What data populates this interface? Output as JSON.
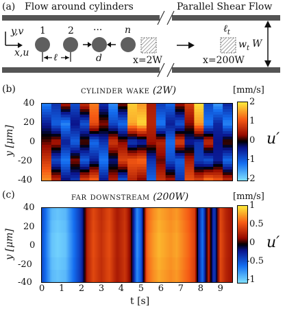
{
  "panel_a": {
    "label": "(a)",
    "left_title": "Flow around cylinders",
    "right_title": "Parallel Shear Flow",
    "axis_y": "y,v",
    "axis_x": "x,u",
    "cyl_labels": [
      "1",
      "2",
      "···",
      "n"
    ],
    "ell": "ℓ",
    "d": "d",
    "ell_t": "ℓ",
    "ell_t_sub": "t",
    "w_t": "w",
    "w_t_sub": "t",
    "W": "W",
    "x1": "x=2W",
    "x2": "x=200W"
  },
  "panel_b": {
    "label": "(b)",
    "title_sc": "cylinder wake",
    "title_math": "(2W)",
    "unit": "[mm/s]",
    "ylabel": "y [μm]",
    "yticks": [
      "40",
      "20",
      "0",
      "-20",
      "-40"
    ],
    "cbar_ticks": [
      "2",
      "1",
      "0",
      "-1",
      "-2"
    ],
    "cbar_symbol": "u′"
  },
  "panel_c": {
    "label": "(c)",
    "title_sc": "far downstream",
    "title_math": "(200W)",
    "unit": "[mm/s]",
    "ylabel": "y [μm]",
    "yticks": [
      "40",
      "20",
      "0",
      "-20",
      "-40"
    ],
    "cbar_ticks": [
      "1",
      "0.5",
      "0",
      "-0.5",
      "-1"
    ],
    "cbar_symbol": "u′",
    "xticks": [
      "0",
      "1",
      "2",
      "3",
      "4",
      "5",
      "6",
      "7",
      "8",
      "9"
    ],
    "xlabel": "t [s]"
  },
  "chart_data": [
    {
      "type": "heatmap",
      "title": "cylinder wake (2W)",
      "xlabel": "t [s]",
      "ylabel": "y [μm]",
      "xlim": [
        0,
        9.6
      ],
      "ylim": [
        -40,
        40
      ],
      "colorbar": {
        "label": "u′",
        "unit": "[mm/s]",
        "range": [
          -2,
          2
        ],
        "ticks": [
          2,
          1,
          0,
          -1,
          -2
        ]
      },
      "columns": [
        [
          -1.2,
          -0.4,
          0.2,
          0.8,
          1.4
        ],
        [
          -0.6,
          -1.0,
          0.5,
          -0.8,
          0.6
        ],
        [
          0.4,
          -1.3,
          -0.4,
          -1.2,
          -0.3
        ],
        [
          -0.8,
          -0.3,
          -1.0,
          0.3,
          -0.6
        ],
        [
          0.6,
          -0.9,
          0.2,
          -1.0,
          0.8
        ],
        [
          1.3,
          1.0,
          -1.1,
          -0.4,
          1.1
        ],
        [
          -0.5,
          0.3,
          -0.6,
          -1.2,
          -0.4
        ],
        [
          -1.3,
          -0.8,
          0.8,
          -0.3,
          0.5
        ],
        [
          0.2,
          -1.1,
          0.3,
          0.9,
          -0.8
        ],
        [
          1.8,
          1.6,
          -0.7,
          1.1,
          0.6
        ],
        [
          1.5,
          1.9,
          -0.5,
          1.2,
          0.3
        ],
        [
          0.5,
          0.6,
          0.4,
          -0.6,
          -1.0
        ],
        [
          -0.7,
          -1.2,
          0.6,
          0.2,
          0.7
        ],
        [
          -1.0,
          -0.4,
          -1.1,
          -0.8,
          0.4
        ],
        [
          0.3,
          -0.9,
          0.9,
          -1.0,
          -0.6
        ],
        [
          0.8,
          0.3,
          -0.4,
          0.5,
          1.0
        ],
        [
          1.9,
          1.5,
          -0.6,
          -0.7,
          0.8
        ],
        [
          -0.8,
          -1.2,
          0.7,
          -0.9,
          1.2
        ],
        [
          -1.4,
          -0.5,
          -0.3,
          -0.4,
          1.0
        ],
        [
          -0.5,
          -1.3,
          0.2,
          -1.1,
          0.6
        ]
      ]
    },
    {
      "type": "heatmap",
      "title": "far downstream (200W)",
      "xlabel": "t [s]",
      "ylabel": "y [μm]",
      "xlim": [
        0,
        9.6
      ],
      "ylim": [
        -40,
        40
      ],
      "colorbar": {
        "label": "u′",
        "unit": "[mm/s]",
        "range": [
          -1,
          1
        ],
        "ticks": [
          1,
          0.5,
          0,
          -0.5,
          -1
        ]
      },
      "profile_t": [
        0,
        0.2,
        0.5,
        0.8,
        1.2,
        1.6,
        2.0,
        2.3,
        2.6,
        3.0,
        3.4,
        3.8,
        4.2,
        4.5,
        4.8,
        5.0,
        5.3,
        5.6,
        5.9,
        6.2,
        6.5,
        6.8,
        7.1,
        7.4,
        7.7,
        7.9,
        8.1,
        8.4,
        8.7,
        9.0,
        9.3,
        9.6
      ],
      "profile_u": [
        -0.4,
        -0.6,
        -0.9,
        -0.95,
        -0.9,
        -0.6,
        -0.3,
        0.3,
        0.5,
        0.35,
        0.5,
        0.25,
        0.4,
        0.1,
        -0.7,
        -0.5,
        0.6,
        0.75,
        0.85,
        0.8,
        0.75,
        0.8,
        0.7,
        0.6,
        0.45,
        -0.2,
        -0.6,
        0.3,
        -0.4,
        0.5,
        0.3,
        0.2
      ]
    }
  ]
}
